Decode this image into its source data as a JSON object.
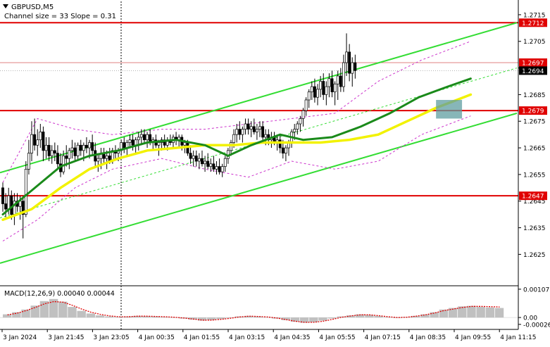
{
  "header": {
    "symbol": "GBPUSD,M5",
    "channel_info": "Channel size = 33 Slope = 0.31"
  },
  "colors": {
    "background": "#ffffff",
    "axis": "#000000",
    "bull": "#ffffff",
    "bear": "#000000",
    "level_line": "#e00000",
    "level_label_bg": "#e00000",
    "current_price_bg": "#000000",
    "channel": "#33dd33",
    "ma_fast": "#1a8a1a",
    "ma_slow": "#f2f200",
    "bollinger": "#cc33cc",
    "macd_hist": "#c0c0c0",
    "macd_signal": "#e00000",
    "highlight_box": "#5f9ea0"
  },
  "chart_data": {
    "type": "candlestick",
    "price_axis": {
      "ylim": [
        1.2614,
        1.272
      ],
      "ticks": [
        "1.2715",
        "1.2705",
        "1.2695",
        "1.2685",
        "1.2675",
        "1.2665",
        "1.2655",
        "1.2645",
        "1.2635",
        "1.2625"
      ]
    },
    "x_axis": {
      "tick_labels": [
        "3 Jan 2024",
        "3 Jan 21:45",
        "3 Jan 23:05",
        "4 Jan 00:35",
        "4 Jan 01:55",
        "4 Jan 03:15",
        "4 Jan 04:35",
        "4 Jan 05:55",
        "4 Jan 07:15",
        "4 Jan 08:35",
        "4 Jan 09:55",
        "4 Jan 11:15"
      ]
    },
    "levels": [
      {
        "label": "1.2712",
        "value": 1.2712
      },
      {
        "label": "1.2679",
        "value": 1.2679
      },
      {
        "label": "1.2647",
        "value": 1.2647
      }
    ],
    "current_price": {
      "label": "1.2694",
      "value": 1.2694
    },
    "bid_line": {
      "label": "1.2697",
      "value": 1.2697
    },
    "channel": {
      "upper": [
        [
          0,
          1.2656
        ],
        [
          178,
          1.2712
        ]
      ],
      "lower": [
        [
          0,
          1.2622
        ],
        [
          178,
          1.2678
        ]
      ],
      "mid": [
        [
          0,
          1.2639
        ],
        [
          178,
          1.2695
        ]
      ]
    },
    "candles_ohlc": [
      [
        1.265,
        1.2652,
        1.2641,
        1.2644
      ],
      [
        1.2644,
        1.2648,
        1.2639,
        1.2642
      ],
      [
        1.2642,
        1.265,
        1.264,
        1.2647
      ],
      [
        1.2647,
        1.2649,
        1.2638,
        1.264
      ],
      [
        1.264,
        1.2648,
        1.2636,
        1.2645
      ],
      [
        1.2645,
        1.2648,
        1.2641,
        1.2643
      ],
      [
        1.2643,
        1.2647,
        1.2638,
        1.2645
      ],
      [
        1.2645,
        1.2647,
        1.2631,
        1.264
      ],
      [
        1.264,
        1.266,
        1.2639,
        1.2657
      ],
      [
        1.2657,
        1.2668,
        1.2655,
        1.2663
      ],
      [
        1.2663,
        1.2675,
        1.266,
        1.267
      ],
      [
        1.267,
        1.2676,
        1.2664,
        1.2666
      ],
      [
        1.2666,
        1.2672,
        1.2662,
        1.2668
      ],
      [
        1.2668,
        1.2674,
        1.2665,
        1.2671
      ],
      [
        1.2671,
        1.2673,
        1.266,
        1.2664
      ],
      [
        1.2664,
        1.2669,
        1.2661,
        1.2666
      ],
      [
        1.2666,
        1.2669,
        1.266,
        1.2662
      ],
      [
        1.2662,
        1.2666,
        1.2659,
        1.2664
      ],
      [
        1.2664,
        1.2667,
        1.266,
        1.2663
      ],
      [
        1.2663,
        1.2666,
        1.2657,
        1.2659
      ],
      [
        1.2659,
        1.2663,
        1.2654,
        1.2656
      ],
      [
        1.2656,
        1.2664,
        1.2655,
        1.2662
      ],
      [
        1.2662,
        1.2666,
        1.2658,
        1.2661
      ],
      [
        1.2661,
        1.2665,
        1.2657,
        1.2664
      ],
      [
        1.2664,
        1.2668,
        1.2661,
        1.2665
      ],
      [
        1.2665,
        1.2667,
        1.266,
        1.2662
      ],
      [
        1.2662,
        1.2667,
        1.266,
        1.2666
      ],
      [
        1.2666,
        1.2668,
        1.2662,
        1.2664
      ],
      [
        1.2664,
        1.2667,
        1.266,
        1.2666
      ],
      [
        1.2666,
        1.2669,
        1.2663,
        1.2665
      ],
      [
        1.2665,
        1.2668,
        1.2661,
        1.2667
      ],
      [
        1.2667,
        1.267,
        1.2662,
        1.2664
      ],
      [
        1.2664,
        1.2667,
        1.2658,
        1.266
      ],
      [
        1.266,
        1.2663,
        1.2656,
        1.2661
      ],
      [
        1.2661,
        1.2665,
        1.2657,
        1.2663
      ],
      [
        1.2663,
        1.2665,
        1.2659,
        1.2661
      ],
      [
        1.2661,
        1.2664,
        1.2657,
        1.2662
      ],
      [
        1.2662,
        1.2665,
        1.2659,
        1.266
      ],
      [
        1.266,
        1.2665,
        1.2659,
        1.2664
      ],
      [
        1.2664,
        1.2666,
        1.2661,
        1.2663
      ],
      [
        1.2663,
        1.2665,
        1.266,
        1.2664
      ],
      [
        1.2664,
        1.2668,
        1.2662,
        1.2667
      ],
      [
        1.2667,
        1.2669,
        1.2663,
        1.2665
      ],
      [
        1.2665,
        1.2668,
        1.2662,
        1.2667
      ],
      [
        1.2667,
        1.267,
        1.2665,
        1.2668
      ],
      [
        1.2668,
        1.267,
        1.2664,
        1.2666
      ],
      [
        1.2666,
        1.2669,
        1.2663,
        1.2668
      ],
      [
        1.2668,
        1.2671,
        1.2664,
        1.2669
      ],
      [
        1.2669,
        1.2672,
        1.2666,
        1.267
      ],
      [
        1.267,
        1.2672,
        1.2667,
        1.2668
      ],
      [
        1.2668,
        1.2671,
        1.2665,
        1.267
      ],
      [
        1.267,
        1.2672,
        1.2666,
        1.2667
      ],
      [
        1.2667,
        1.2669,
        1.2664,
        1.2668
      ],
      [
        1.2668,
        1.267,
        1.2665,
        1.2666
      ],
      [
        1.2666,
        1.2668,
        1.2662,
        1.2667
      ],
      [
        1.2667,
        1.2669,
        1.2664,
        1.2668
      ],
      [
        1.2668,
        1.267,
        1.2665,
        1.2666
      ],
      [
        1.2666,
        1.2669,
        1.2664,
        1.2668
      ],
      [
        1.2668,
        1.267,
        1.2666,
        1.2667
      ],
      [
        1.2667,
        1.267,
        1.2665,
        1.2669
      ],
      [
        1.2669,
        1.2671,
        1.2666,
        1.2668
      ],
      [
        1.2668,
        1.267,
        1.2665,
        1.2669
      ],
      [
        1.2669,
        1.267,
        1.2664,
        1.2666
      ],
      [
        1.2666,
        1.2668,
        1.2663,
        1.2667
      ],
      [
        1.2667,
        1.2668,
        1.2662,
        1.2663
      ],
      [
        1.2663,
        1.2666,
        1.2659,
        1.2661
      ],
      [
        1.2661,
        1.2664,
        1.2658,
        1.2662
      ],
      [
        1.2662,
        1.2664,
        1.2658,
        1.266
      ],
      [
        1.266,
        1.2663,
        1.2657,
        1.2661
      ],
      [
        1.2661,
        1.2664,
        1.2658,
        1.2659
      ],
      [
        1.2659,
        1.2662,
        1.2656,
        1.266
      ],
      [
        1.266,
        1.2663,
        1.2657,
        1.2658
      ],
      [
        1.2658,
        1.2661,
        1.2656,
        1.2659
      ],
      [
        1.2659,
        1.2662,
        1.2656,
        1.2657
      ],
      [
        1.2657,
        1.266,
        1.2655,
        1.2658
      ],
      [
        1.2658,
        1.2661,
        1.2655,
        1.2656
      ],
      [
        1.2656,
        1.2659,
        1.2654,
        1.2658
      ],
      [
        1.2658,
        1.2662,
        1.2656,
        1.2661
      ],
      [
        1.2661,
        1.2665,
        1.2659,
        1.2664
      ],
      [
        1.2664,
        1.2668,
        1.2662,
        1.2667
      ],
      [
        1.2667,
        1.2672,
        1.2665,
        1.267
      ],
      [
        1.267,
        1.2674,
        1.2667,
        1.2672
      ],
      [
        1.2672,
        1.2675,
        1.2668,
        1.267
      ],
      [
        1.267,
        1.2673,
        1.2667,
        1.2672
      ],
      [
        1.2672,
        1.2676,
        1.267,
        1.2674
      ],
      [
        1.2674,
        1.2676,
        1.267,
        1.2672
      ],
      [
        1.2672,
        1.2675,
        1.2669,
        1.2673
      ],
      [
        1.2673,
        1.2676,
        1.267,
        1.2671
      ],
      [
        1.2671,
        1.2674,
        1.2668,
        1.2672
      ],
      [
        1.2672,
        1.2675,
        1.2669,
        1.2673
      ],
      [
        1.2673,
        1.2675,
        1.2668,
        1.2669
      ],
      [
        1.2669,
        1.2672,
        1.2666,
        1.267
      ],
      [
        1.267,
        1.2672,
        1.2666,
        1.2668
      ],
      [
        1.2668,
        1.2671,
        1.2665,
        1.2669
      ],
      [
        1.2669,
        1.2671,
        1.2666,
        1.2667
      ],
      [
        1.2667,
        1.267,
        1.2664,
        1.2668
      ],
      [
        1.2668,
        1.267,
        1.2663,
        1.2665
      ],
      [
        1.2665,
        1.2668,
        1.2661,
        1.2663
      ],
      [
        1.2663,
        1.2666,
        1.266,
        1.2665
      ],
      [
        1.2665,
        1.2668,
        1.2662,
        1.2667
      ],
      [
        1.2667,
        1.2672,
        1.2665,
        1.2671
      ],
      [
        1.2671,
        1.2674,
        1.2668,
        1.2672
      ],
      [
        1.2672,
        1.2675,
        1.267,
        1.2674
      ],
      [
        1.2674,
        1.2677,
        1.2671,
        1.2676
      ],
      [
        1.2676,
        1.268,
        1.2673,
        1.2679
      ],
      [
        1.2679,
        1.2684,
        1.2677,
        1.2683
      ],
      [
        1.2683,
        1.2687,
        1.268,
        1.2686
      ],
      [
        1.2686,
        1.269,
        1.2683,
        1.2688
      ],
      [
        1.2688,
        1.2691,
        1.2682,
        1.2684
      ],
      [
        1.2684,
        1.2689,
        1.2681,
        1.2687
      ],
      [
        1.2687,
        1.2692,
        1.2684,
        1.269
      ],
      [
        1.269,
        1.2693,
        1.2683,
        1.2685
      ],
      [
        1.2685,
        1.269,
        1.2681,
        1.2688
      ],
      [
        1.2688,
        1.2693,
        1.2684,
        1.2691
      ],
      [
        1.2691,
        1.2694,
        1.2684,
        1.2686
      ],
      [
        1.2686,
        1.269,
        1.2681,
        1.2689
      ],
      [
        1.2689,
        1.2694,
        1.2683,
        1.2692
      ],
      [
        1.2692,
        1.2695,
        1.2686,
        1.2688
      ],
      [
        1.2688,
        1.27,
        1.2686,
        1.2697
      ],
      [
        1.2697,
        1.2708,
        1.2692,
        1.2701
      ],
      [
        1.2701,
        1.2704,
        1.269,
        1.2693
      ],
      [
        1.2693,
        1.2699,
        1.2688,
        1.2697
      ],
      [
        1.2697,
        1.27,
        1.2691,
        1.2694
      ]
    ],
    "ma_fast_points": [
      [
        0,
        1.264
      ],
      [
        10,
        1.2649
      ],
      [
        20,
        1.2658
      ],
      [
        30,
        1.2662
      ],
      [
        40,
        1.2664
      ],
      [
        50,
        1.2667
      ],
      [
        60,
        1.2668
      ],
      [
        70,
        1.2666
      ],
      [
        78,
        1.2662
      ],
      [
        86,
        1.2666
      ],
      [
        96,
        1.267
      ],
      [
        104,
        1.2668
      ],
      [
        114,
        1.2669
      ],
      [
        124,
        1.2673
      ],
      [
        134,
        1.2678
      ],
      [
        144,
        1.2684
      ],
      [
        154,
        1.2688
      ],
      [
        162,
        1.2691
      ]
    ],
    "ma_slow_points": [
      [
        0,
        1.2638
      ],
      [
        10,
        1.2642
      ],
      [
        20,
        1.265
      ],
      [
        30,
        1.2657
      ],
      [
        40,
        1.2661
      ],
      [
        50,
        1.2664
      ],
      [
        60,
        1.2665
      ],
      [
        70,
        1.2666
      ],
      [
        80,
        1.2666
      ],
      [
        90,
        1.2667
      ],
      [
        100,
        1.2667
      ],
      [
        110,
        1.2667
      ],
      [
        120,
        1.2668
      ],
      [
        130,
        1.267
      ],
      [
        140,
        1.2675
      ],
      [
        150,
        1.268
      ],
      [
        162,
        1.2685
      ]
    ],
    "bollinger_upper": [
      [
        0,
        1.2652
      ],
      [
        12,
        1.2676
      ],
      [
        25,
        1.2672
      ],
      [
        38,
        1.267
      ],
      [
        55,
        1.2672
      ],
      [
        70,
        1.2672
      ],
      [
        85,
        1.2674
      ],
      [
        100,
        1.2676
      ],
      [
        115,
        1.2678
      ],
      [
        130,
        1.269
      ],
      [
        145,
        1.2698
      ],
      [
        162,
        1.2705
      ]
    ],
    "bollinger_lower": [
      [
        0,
        1.263
      ],
      [
        12,
        1.2638
      ],
      [
        25,
        1.265
      ],
      [
        38,
        1.2657
      ],
      [
        55,
        1.2661
      ],
      [
        70,
        1.2657
      ],
      [
        85,
        1.2654
      ],
      [
        100,
        1.266
      ],
      [
        115,
        1.2657
      ],
      [
        130,
        1.266
      ],
      [
        145,
        1.267
      ],
      [
        162,
        1.2677
      ]
    ],
    "macd": {
      "label": "MACD(12,26,9) 0.00040 0.00044",
      "ylim": [
        -0.00045,
        0.0012
      ],
      "ticks": [
        "0.00107",
        "0.00",
        "-0.00026"
      ],
      "histogram": [
        0.00012,
        0.0002,
        0.0003,
        0.00045,
        0.00062,
        0.0007,
        0.0006,
        0.0004,
        0.00025,
        0.00015,
        8e-05,
        4e-05,
        2e-05,
        4e-05,
        6e-05,
        5e-05,
        4e-05,
        2e-05,
        0.0,
        -4e-05,
        -8e-05,
        -0.00012,
        -0.0001,
        -6e-05,
        -2e-05,
        4e-05,
        6e-05,
        4e-05,
        1e-05,
        -4e-05,
        -0.0001,
        -0.00016,
        -0.0002,
        -0.00018,
        -0.00012,
        -4e-05,
        4e-05,
        8e-05,
        0.00012,
        0.0001,
        6e-05,
        2e-05,
        -2e-05,
        2e-05,
        6e-05,
        0.00012,
        0.0002,
        0.0003,
        0.00036,
        0.00042,
        0.00044,
        0.0004,
        0.00038,
        0.00036
      ],
      "signal": [
        0.0001,
        0.00016,
        0.00026,
        0.00038,
        0.00052,
        0.0006,
        0.00058,
        0.00046,
        0.00032,
        0.0002,
        0.00012,
        6e-05,
        3e-05,
        3e-05,
        5e-05,
        5e-05,
        4e-05,
        3e-05,
        1e-05,
        -2e-05,
        -6e-05,
        -0.0001,
        -0.0001,
        -7e-05,
        -3e-05,
        2e-05,
        5e-05,
        4e-05,
        2e-05,
        -2e-05,
        -8e-05,
        -0.00014,
        -0.00018,
        -0.00018,
        -0.00014,
        -7e-05,
        1e-05,
        6e-05,
        0.0001,
        0.0001,
        7e-05,
        3e-05,
        0.0,
        1e-05,
        5e-05,
        0.0001,
        0.00017,
        0.00026,
        0.00032,
        0.00038,
        0.00042,
        0.00042,
        0.00041,
        0.0004
      ]
    }
  }
}
